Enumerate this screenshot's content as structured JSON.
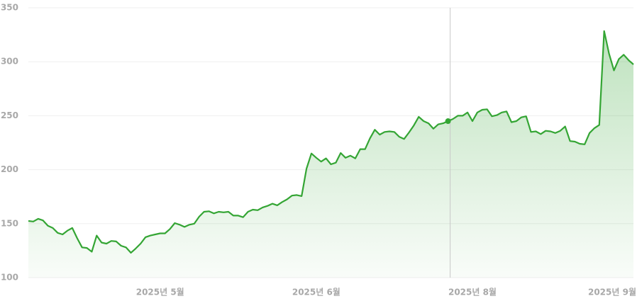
{
  "chart_data": {
    "type": "area",
    "categories": [
      null,
      null,
      null,
      null,
      null,
      null,
      null,
      null,
      null,
      null,
      null,
      null,
      null,
      null,
      null,
      null,
      null,
      null,
      null,
      null,
      null,
      null,
      null,
      null,
      null,
      null,
      null,
      "2025년 5월",
      null,
      null,
      null,
      null,
      null,
      null,
      null,
      null,
      null,
      null,
      null,
      null,
      null,
      null,
      null,
      null,
      null,
      null,
      null,
      null,
      null,
      null,
      null,
      null,
      null,
      null,
      null,
      null,
      null,
      null,
      null,
      "2025년 6월",
      null,
      null,
      null,
      null,
      null,
      null,
      null,
      null,
      null,
      null,
      null,
      null,
      null,
      null,
      null,
      null,
      null,
      null,
      null,
      null,
      null,
      null,
      null,
      null,
      null,
      null,
      null,
      null,
      null,
      null,
      null,
      "2025년 8월",
      null,
      null,
      null,
      null,
      null,
      null,
      null,
      null,
      null,
      null,
      null,
      null,
      null,
      null,
      null,
      null,
      null,
      null,
      null,
      null,
      null,
      null,
      null,
      null,
      null,
      null,
      null,
      null,
      "2025년 9월",
      null,
      null,
      null,
      null
    ],
    "values": [
      152.5,
      152,
      154.5,
      153,
      148,
      146,
      141.5,
      140,
      143.5,
      146,
      136.5,
      128,
      127.5,
      124,
      139,
      132.5,
      131.5,
      134,
      133.5,
      129.5,
      128,
      123,
      127,
      131.5,
      137.5,
      139,
      140,
      141,
      141,
      145,
      150.5,
      149,
      147,
      149,
      150,
      156.5,
      161,
      161.5,
      159.5,
      161,
      160.5,
      161,
      157.5,
      157.5,
      156,
      161,
      163,
      162.5,
      165,
      166.5,
      168.5,
      167,
      170,
      172.5,
      176,
      176.5,
      175.5,
      201,
      215,
      211,
      207.5,
      210.5,
      205,
      206.5,
      215.5,
      211,
      213,
      210.5,
      219,
      219,
      229,
      237,
      232.5,
      235,
      235.5,
      235,
      230.5,
      228.5,
      234.5,
      241,
      249,
      245,
      243,
      238,
      242,
      243,
      245,
      247,
      250,
      250,
      253,
      245,
      253,
      255.5,
      256,
      249.5,
      250.5,
      253,
      254,
      244,
      245,
      248.5,
      249.5,
      235,
      235.5,
      233,
      236,
      235.5,
      234,
      236,
      240,
      226.5,
      226,
      224,
      223.5,
      234,
      238.5,
      241.5,
      328.5,
      307.5,
      292,
      302.5,
      306.5,
      301.5,
      297.5
    ],
    "color": "#34a534",
    "ylim": [
      100,
      350
    ],
    "yticks": [
      100,
      150,
      200,
      250,
      300,
      350
    ],
    "grid": true,
    "hover_index": 86
  }
}
